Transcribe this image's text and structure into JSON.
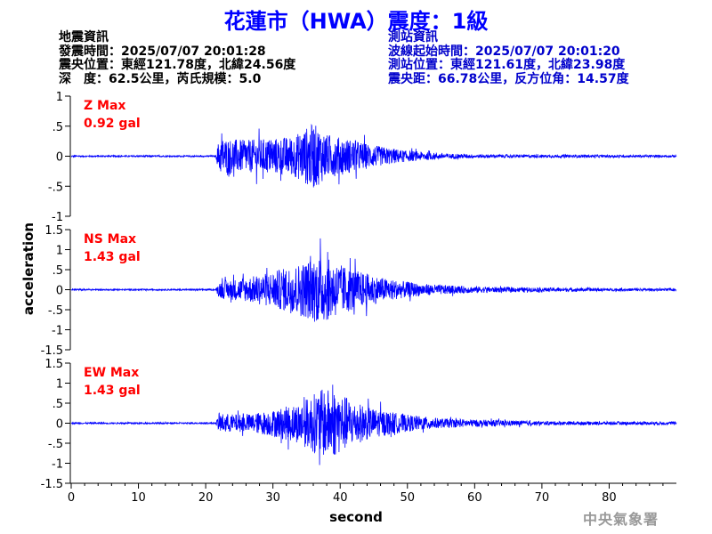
{
  "title": "花蓮市（HWA）震度：1級",
  "left_info": {
    "heading": "地震資訊",
    "origin_time": "發震時間：2025/07/07 20:01:28",
    "epicenter": "震央位置：東經121.78度，北緯24.56度",
    "depth_mag": "深　度：62.5公里，芮氏規模：5.0"
  },
  "right_info": {
    "heading": "測站資訊",
    "wave_start": "波線起始時間：2025/07/07 20:01:20",
    "station_pos": "測站位置：東經121.61度，北緯23.98度",
    "distance": "震央距：66.78公里，反方位角：14.57度"
  },
  "footer": "中央氣象署",
  "colors": {
    "trace": "#0000ff",
    "label": "#ff0000",
    "title": "#0000ff",
    "right_info": "#0000cc"
  },
  "chart_data": {
    "type": "line",
    "xlabel": "second",
    "ylabel": "acceleration",
    "xlim": [
      0,
      90
    ],
    "x_ticks": [
      0,
      10,
      20,
      30,
      40,
      50,
      60,
      70,
      80
    ],
    "panels": [
      {
        "name": "Z Max",
        "max_label": "Z Max",
        "max_value": "0.92 gal",
        "ylim": [
          -1,
          1
        ],
        "y_ticks": [
          1,
          0.5,
          0,
          -0.5,
          -1
        ],
        "envelope": [
          [
            0,
            0.02
          ],
          [
            21.5,
            0.02
          ],
          [
            22,
            0.5
          ],
          [
            26,
            0.45
          ],
          [
            30,
            0.5
          ],
          [
            33,
            0.55
          ],
          [
            36,
            0.92
          ],
          [
            38,
            0.6
          ],
          [
            42,
            0.45
          ],
          [
            45,
            0.3
          ],
          [
            50,
            0.15
          ],
          [
            55,
            0.08
          ],
          [
            60,
            0.05
          ],
          [
            70,
            0.04
          ],
          [
            90,
            0.03
          ]
        ]
      },
      {
        "name": "NS Max",
        "max_label": "NS Max",
        "max_value": "1.43 gal",
        "ylim": [
          -1.5,
          1.5
        ],
        "y_ticks": [
          1.5,
          1,
          0.5,
          0,
          -0.5,
          -1,
          -1.5
        ],
        "envelope": [
          [
            0,
            0.03
          ],
          [
            21.5,
            0.03
          ],
          [
            22,
            0.35
          ],
          [
            26,
            0.5
          ],
          [
            30,
            0.75
          ],
          [
            34,
            1.1
          ],
          [
            37,
            1.43
          ],
          [
            40,
            1.05
          ],
          [
            43,
            0.75
          ],
          [
            47,
            0.45
          ],
          [
            52,
            0.25
          ],
          [
            58,
            0.15
          ],
          [
            65,
            0.1
          ],
          [
            80,
            0.06
          ],
          [
            90,
            0.05
          ]
        ]
      },
      {
        "name": "EW Max",
        "max_label": "EW Max",
        "max_value": "1.43 gal",
        "ylim": [
          -1.5,
          1.5
        ],
        "y_ticks": [
          1.5,
          1,
          0.5,
          0,
          -0.5,
          -1,
          -1.5
        ],
        "envelope": [
          [
            0,
            0.03
          ],
          [
            21.5,
            0.03
          ],
          [
            22,
            0.4
          ],
          [
            26,
            0.35
          ],
          [
            30,
            0.55
          ],
          [
            34,
            0.85
          ],
          [
            37,
            1.4
          ],
          [
            39,
            1.43
          ],
          [
            42,
            0.9
          ],
          [
            45,
            0.6
          ],
          [
            50,
            0.35
          ],
          [
            55,
            0.2
          ],
          [
            60,
            0.15
          ],
          [
            70,
            0.08
          ],
          [
            90,
            0.06
          ]
        ]
      }
    ]
  }
}
